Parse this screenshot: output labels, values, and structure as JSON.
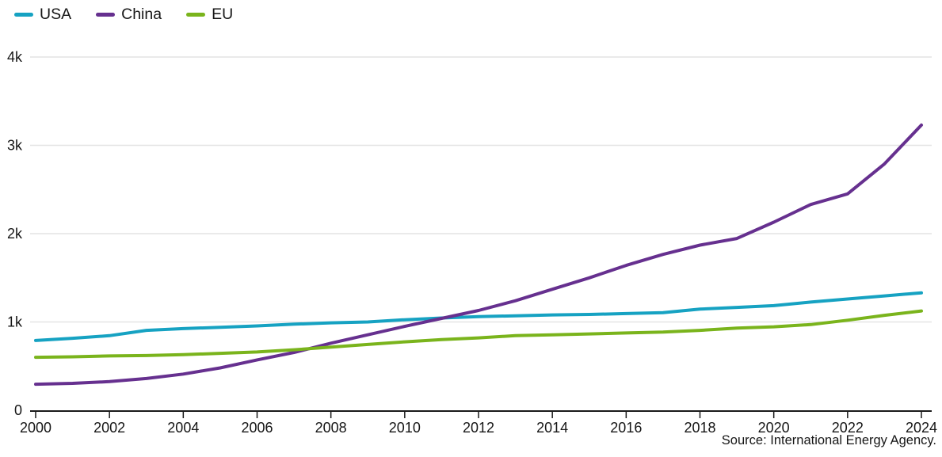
{
  "legend": {
    "items": [
      {
        "label": "USA",
        "color": "#16a2c2"
      },
      {
        "label": "China",
        "color": "#66308f"
      },
      {
        "label": "EU",
        "color": "#7ab41c"
      }
    ]
  },
  "source": "Source: International Energy Agency.",
  "colors": {
    "grid": "#e4e4e4",
    "axis": "#1a1a1a",
    "text": "#161616"
  },
  "chart_data": {
    "type": "line",
    "title": "",
    "xlabel": "",
    "ylabel": "",
    "x": [
      2000,
      2001,
      2002,
      2003,
      2004,
      2005,
      2006,
      2007,
      2008,
      2009,
      2010,
      2011,
      2012,
      2013,
      2014,
      2015,
      2016,
      2017,
      2018,
      2019,
      2020,
      2021,
      2022,
      2023,
      2024
    ],
    "series": [
      {
        "name": "USA",
        "color": "#16a2c2",
        "values": [
          790,
          815,
          845,
          905,
          925,
          940,
          955,
          975,
          990,
          1000,
          1025,
          1045,
          1060,
          1070,
          1080,
          1085,
          1095,
          1105,
          1145,
          1165,
          1185,
          1225,
          1260,
          1295,
          1330
        ]
      },
      {
        "name": "China",
        "color": "#66308f",
        "values": [
          295,
          305,
          325,
          360,
          410,
          480,
          570,
          655,
          760,
          855,
          950,
          1040,
          1130,
          1240,
          1370,
          1500,
          1640,
          1765,
          1870,
          1945,
          2130,
          2330,
          2450,
          2790,
          3230
        ]
      },
      {
        "name": "EU",
        "color": "#7ab41c",
        "values": [
          600,
          605,
          615,
          620,
          630,
          645,
          660,
          685,
          715,
          745,
          775,
          800,
          820,
          845,
          855,
          865,
          875,
          885,
          905,
          930,
          945,
          970,
          1020,
          1075,
          1125
        ]
      }
    ],
    "xlim": [
      2000,
      2024
    ],
    "ylim": [
      0,
      4000
    ],
    "x_ticks": [
      2000,
      2002,
      2004,
      2006,
      2008,
      2010,
      2012,
      2014,
      2016,
      2018,
      2020,
      2022,
      2024
    ],
    "y_ticks": [
      {
        "value": 0,
        "label": "0"
      },
      {
        "value": 1000,
        "label": "1k"
      },
      {
        "value": 2000,
        "label": "2k"
      },
      {
        "value": 3000,
        "label": "3k"
      },
      {
        "value": 4000,
        "label": "4k"
      }
    ],
    "y_tick_format": "thousands-k",
    "grid": "horizontal",
    "legend_position": "top-left",
    "source": "Source: International Energy Agency."
  }
}
